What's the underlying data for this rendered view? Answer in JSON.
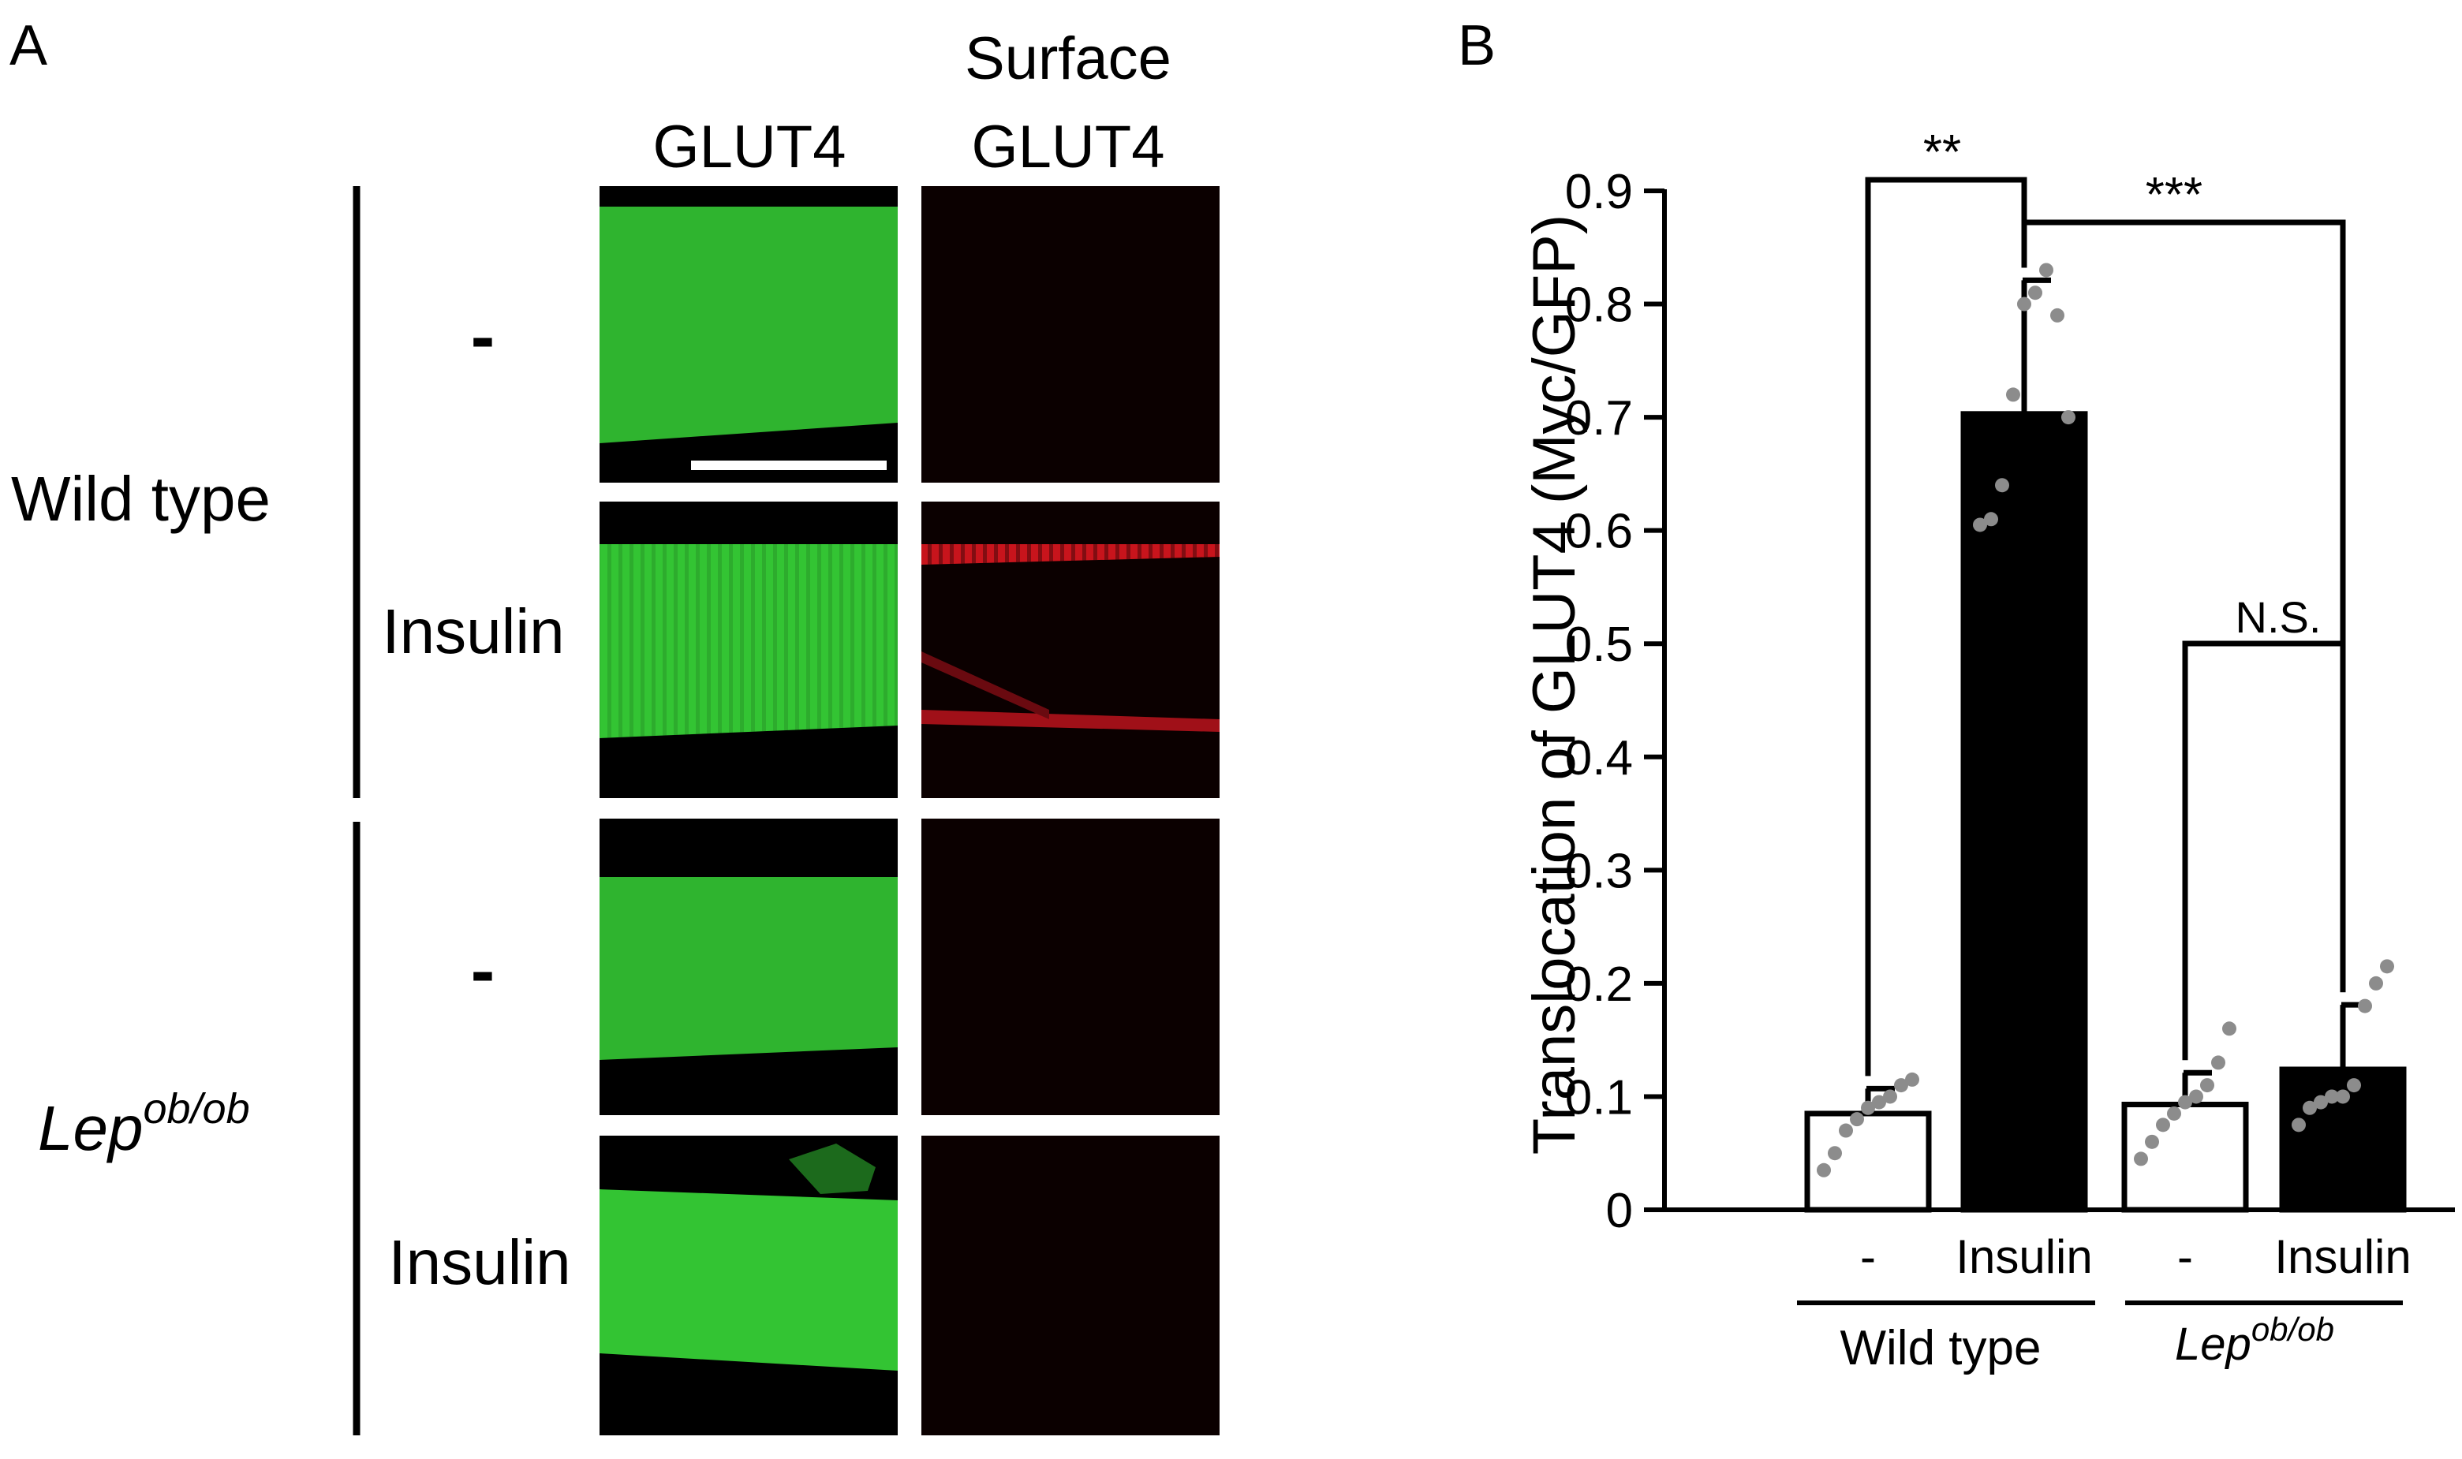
{
  "panel_a": {
    "letter": "A",
    "col_headers": {
      "glut4": "GLUT4",
      "surface_line1": "Surface",
      "surface_line2": "GLUT4"
    },
    "groups": [
      {
        "name": "Wild type",
        "conditions": [
          "-",
          "Insulin"
        ]
      },
      {
        "name_base": "Lep",
        "name_sup": "ob/ob",
        "conditions": [
          "-",
          "Insulin"
        ]
      }
    ],
    "images": [
      {
        "label": "glut4-wt-basal",
        "channel": "green",
        "color": "#2fbd2f"
      },
      {
        "label": "surface-wt-basal",
        "channel": "red",
        "color": "#0c0000"
      },
      {
        "label": "glut4-wt-insulin",
        "channel": "green",
        "color": "#2fbd2f"
      },
      {
        "label": "surface-wt-insulin",
        "channel": "red",
        "color": "#c8141c"
      },
      {
        "label": "glut4-lep-basal",
        "channel": "green",
        "color": "#2fbd2f"
      },
      {
        "label": "surface-lep-basal",
        "channel": "red",
        "color": "#0c0000"
      },
      {
        "label": "glut4-lep-insulin",
        "channel": "green",
        "color": "#2fbd2f"
      },
      {
        "label": "surface-lep-insulin",
        "channel": "red",
        "color": "#0c0000"
      }
    ]
  },
  "panel_b": {
    "letter": "B",
    "chart_data": {
      "type": "bar",
      "ylabel": "Translocation of GLUT4 (Myc/GFP)",
      "ylim": [
        0,
        0.9
      ],
      "yticks": [
        "0",
        "0.1",
        "0.2",
        "0.3",
        "0.4",
        "0.5",
        "0.6",
        "0.7",
        "0.8",
        "0.9"
      ],
      "categories": [
        "-",
        "Insulin",
        "-",
        "Insulin"
      ],
      "groups": [
        {
          "label": "Wild type",
          "categories": [
            "-",
            "Insulin"
          ]
        },
        {
          "label_base": "Lep",
          "label_sup": "ob/ob",
          "categories": [
            "-",
            "Insulin"
          ]
        }
      ],
      "values": [
        0.085,
        0.703,
        0.093,
        0.124
      ],
      "errors": [
        0.022,
        0.118,
        0.028,
        0.057
      ],
      "bar_fills": [
        "#ffffff",
        "#000000",
        "#ffffff",
        "#000000"
      ],
      "points": [
        [
          0.035,
          0.05,
          0.07,
          0.08,
          0.09,
          0.095,
          0.1,
          0.11,
          0.115
        ],
        [
          0.605,
          0.61,
          0.64,
          0.72,
          0.8,
          0.81,
          0.83,
          0.79,
          0.7
        ],
        [
          0.045,
          0.06,
          0.075,
          0.085,
          0.095,
          0.1,
          0.11,
          0.13,
          0.16
        ],
        [
          0.075,
          0.09,
          0.095,
          0.1,
          0.1,
          0.11,
          0.18,
          0.2,
          0.215
        ]
      ],
      "significance": [
        {
          "label": "**",
          "between": [
            0,
            1
          ]
        },
        {
          "label": "***",
          "between": [
            1,
            3
          ]
        },
        {
          "label": "N.S.",
          "between": [
            2,
            3
          ]
        }
      ],
      "point_color": "#8c8c8c"
    }
  }
}
